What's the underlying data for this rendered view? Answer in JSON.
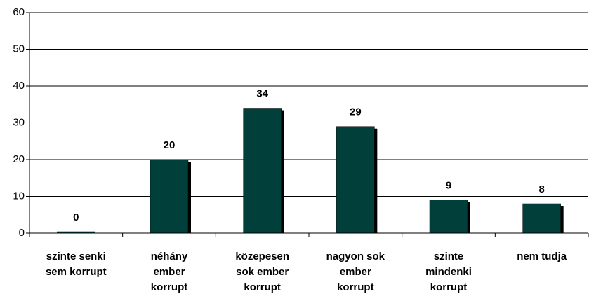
{
  "chart_data": {
    "type": "bar",
    "categories": [
      [
        "szinte senki",
        "sem korrupt"
      ],
      [
        "néhány",
        "ember",
        "korrupt"
      ],
      [
        "közepesen",
        "sok ember",
        "korrupt"
      ],
      [
        "nagyon sok",
        "ember",
        "korrupt"
      ],
      [
        "szinte",
        "mindenki",
        "korrupt"
      ],
      [
        "nem tudja"
      ]
    ],
    "values": [
      0,
      20,
      34,
      29,
      9,
      8
    ],
    "color": "#003f3a",
    "ylim": [
      0,
      60
    ],
    "yticks": [
      0,
      10,
      20,
      30,
      40,
      50,
      60
    ],
    "grid": true
  }
}
